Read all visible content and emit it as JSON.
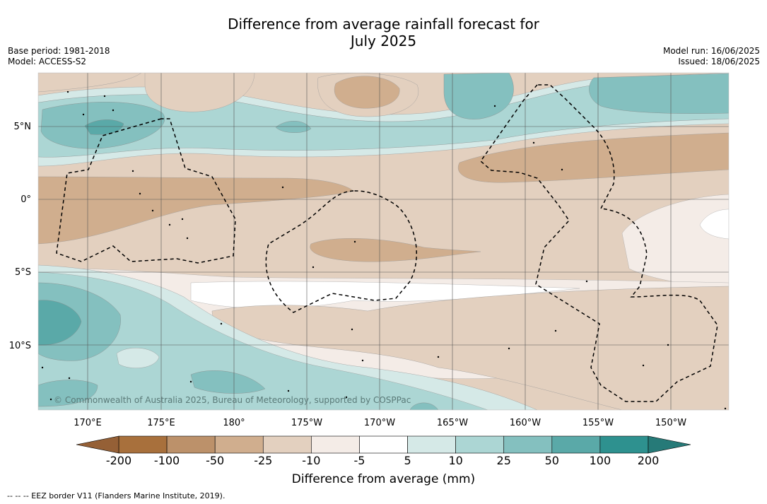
{
  "header": {
    "title_line1": "Difference from average rainfall forecast for",
    "title_line2": "July 2025",
    "base_period": "Base period: 1981-2018",
    "model": "Model: ACCESS-S2",
    "model_run": "Model run: 16/06/2025",
    "issued": "Issued: 18/06/2025"
  },
  "map": {
    "lat_labels": [
      "5°N",
      "0°",
      "5°S",
      "10°S"
    ],
    "lon_labels": [
      "170°E",
      "175°E",
      "180°",
      "175°W",
      "170°W",
      "165°W",
      "160°W",
      "155°W",
      "150°W"
    ],
    "copyright": "© Commonwealth of Australia 2025, Bureau of Meteorology, supported by COSPPac",
    "colors": {
      "brown_200": "#a8703c",
      "brown_100": "#bc916a",
      "brown_50": "#d0ae8e",
      "brown_25": "#e3d0bf",
      "brown_10": "#f4ece7",
      "white": "#ffffff",
      "teal_10": "#d5e9e7",
      "teal_25": "#acd6d4",
      "teal_50": "#84c0bf",
      "teal_100": "#5aa9a8",
      "teal_200": "#2e918f"
    }
  },
  "colorbar": {
    "ticks": [
      "-200",
      "-100",
      "-50",
      "-25",
      "-10",
      "-5",
      "5",
      "10",
      "25",
      "50",
      "100",
      "200"
    ],
    "colors": [
      "#a8703c",
      "#bc916a",
      "#d0ae8e",
      "#e3d0bf",
      "#f4ece7",
      "#ffffff",
      "#d5e9e7",
      "#acd6d4",
      "#84c0bf",
      "#5aa9a8",
      "#2e918f"
    ],
    "extend_low_color": "#956036",
    "extend_high_color": "#267a78",
    "title": "Difference from average (mm)"
  },
  "footnote": "--  --  -- EEZ border V11 (Flanders Marine Institute, 2019)."
}
